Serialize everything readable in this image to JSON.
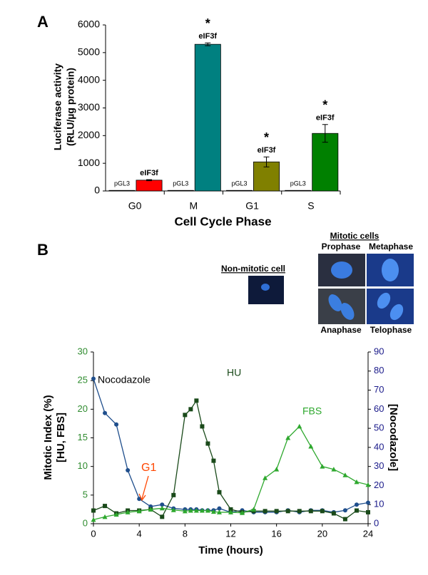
{
  "panels": {
    "a": "A",
    "b": "B"
  },
  "micrographs": {
    "group_title": "Mitotic cells",
    "single_title": "Non-mitotic cell",
    "phases": [
      "Prophase",
      "Metaphase",
      "Anaphase",
      "Telophase"
    ]
  },
  "chart_data": [
    {
      "type": "bar",
      "categories": [
        "G0",
        "M",
        "G1",
        "S"
      ],
      "xlabel": "Cell Cycle Phase",
      "ylabel": [
        "Luciferase activity",
        "(RLU/µg protein)"
      ],
      "ylim": [
        0,
        6000
      ],
      "yticks": [
        0,
        1000,
        2000,
        3000,
        4000,
        5000,
        6000
      ],
      "series": [
        {
          "name": "pGL3",
          "color": "#1a1a5e",
          "values": [
            20,
            20,
            20,
            20
          ]
        },
        {
          "name": "eIF3f",
          "colors": [
            "#ff0000",
            "#008080",
            "#808000",
            "#008000"
          ],
          "values": [
            390,
            5300,
            1050,
            2080
          ],
          "errors": [
            20,
            50,
            180,
            320
          ]
        }
      ],
      "annotations": [
        {
          "category": "M",
          "text": "*"
        },
        {
          "category": "G1",
          "text": "*"
        },
        {
          "category": "S",
          "text": "*"
        }
      ]
    },
    {
      "type": "line",
      "xlabel": "Time (hours)",
      "ylabel": [
        "Mitotic Index (%)",
        "[HU, FBS]"
      ],
      "y2label": "[Nocodazole]",
      "xlim": [
        0,
        24
      ],
      "xticks": [
        0,
        4,
        8,
        12,
        16,
        20,
        24
      ],
      "ylim": [
        0,
        30
      ],
      "yticks": [
        0,
        5,
        10,
        15,
        20,
        25,
        30
      ],
      "y2lim": [
        0,
        90
      ],
      "y2ticks": [
        0,
        10,
        20,
        30,
        40,
        50,
        60,
        70,
        80,
        90
      ],
      "x": [
        0,
        1,
        2,
        3,
        4,
        5,
        6,
        7,
        8,
        8.5,
        9,
        9.5,
        10,
        10.5,
        11,
        12,
        13,
        14,
        15,
        16,
        17,
        18,
        19,
        20,
        21,
        22,
        23,
        24
      ],
      "series": [
        {
          "name": "Nocodazole",
          "color": "#1f4e8c",
          "marker": "circle",
          "axis": "y2",
          "values": [
            76,
            58,
            52,
            28,
            13,
            9,
            10,
            8,
            7.5,
            7.5,
            7.5,
            7,
            7,
            7,
            8,
            6,
            7,
            6,
            6,
            6,
            7,
            6,
            7,
            7,
            6,
            7,
            10,
            11
          ]
        },
        {
          "name": "HU",
          "color": "#1a4a1a",
          "marker": "square",
          "values": [
            2.3,
            3.1,
            1.8,
            2.3,
            2.3,
            2.5,
            1.2,
            5,
            19,
            20,
            21.5,
            17,
            14,
            11,
            5.5,
            2.5,
            2,
            2.2,
            2.2,
            2.2,
            2.2,
            2.2,
            2.2,
            2.2,
            1.8,
            0.8,
            2.3,
            2
          ]
        },
        {
          "name": "FBS",
          "color": "#2ea82e",
          "marker": "triangle",
          "values": [
            0.7,
            1.2,
            1.6,
            2,
            2.2,
            2.5,
            2.7,
            2.4,
            2.2,
            2.3,
            2.3,
            2.3,
            2.3,
            2.1,
            2,
            2,
            1.9,
            2.5,
            8,
            9.5,
            15,
            17,
            13.5,
            10,
            9.5,
            8.5,
            7.3,
            6.8
          ]
        }
      ],
      "annotations": [
        "G1"
      ]
    }
  ]
}
